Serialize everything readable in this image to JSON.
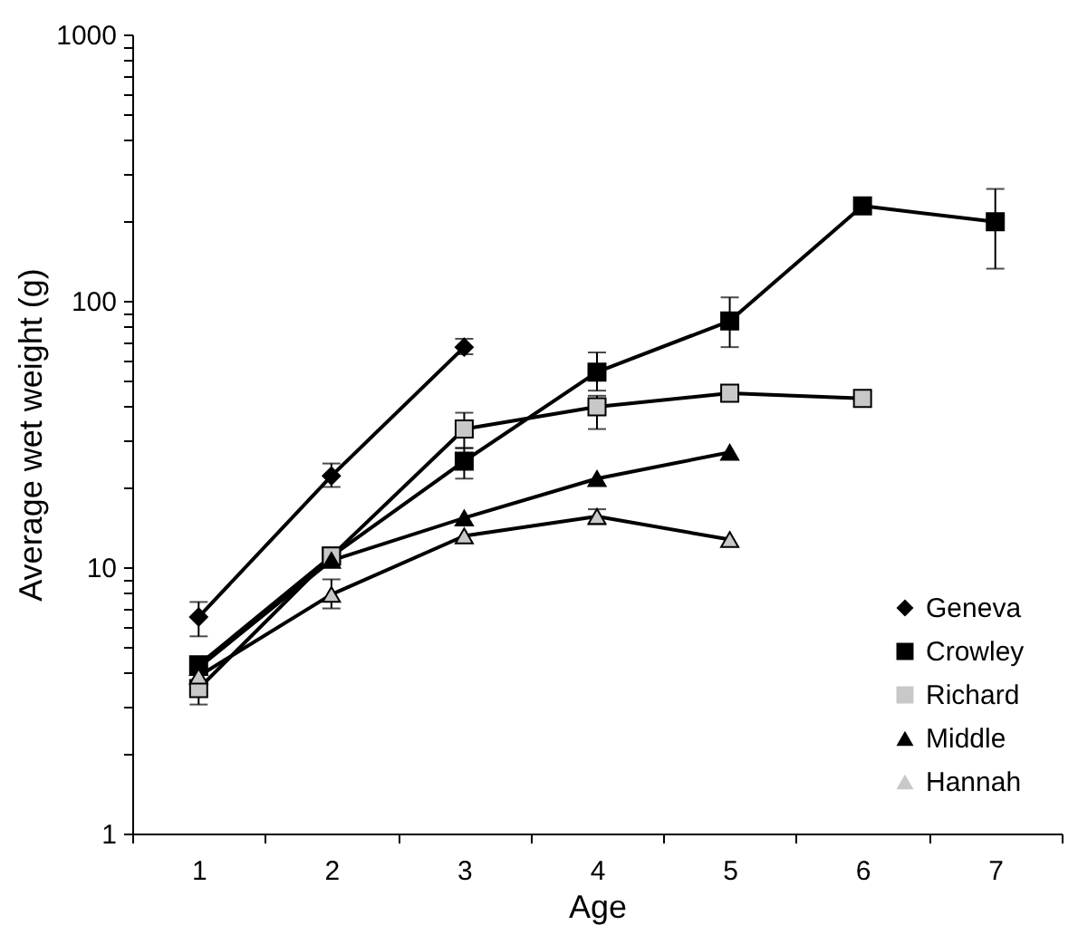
{
  "chart_data": {
    "type": "line",
    "xlabel": "Age",
    "ylabel": "Average wet weight (g)",
    "categories": [
      "1",
      "2",
      "3",
      "4",
      "5",
      "6",
      "7"
    ],
    "log": "y",
    "ylim": [
      1,
      1000
    ],
    "yticks": [
      1,
      {
        "value": 2,
        "label": null
      },
      {
        "value": 3,
        "label": null
      },
      {
        "value": 4,
        "label": null
      },
      {
        "value": 5,
        "label": null
      },
      {
        "value": 6,
        "label": null
      },
      {
        "value": 7,
        "label": null
      },
      {
        "value": 8,
        "label": null
      },
      {
        "value": 9,
        "label": null
      },
      10,
      {
        "value": 20,
        "label": null
      },
      {
        "value": 30,
        "label": null
      },
      {
        "value": 40,
        "label": null
      },
      {
        "value": 50,
        "label": null
      },
      {
        "value": 60,
        "label": null
      },
      {
        "value": 70,
        "label": null
      },
      {
        "value": 80,
        "label": null
      },
      {
        "value": 90,
        "label": null
      },
      100,
      {
        "value": 200,
        "label": null
      },
      {
        "value": 300,
        "label": null
      },
      {
        "value": 400,
        "label": null
      },
      {
        "value": 500,
        "label": null
      },
      {
        "value": 600,
        "label": null
      },
      {
        "value": 700,
        "label": null
      },
      {
        "value": 800,
        "label": null
      },
      {
        "value": 900,
        "label": null
      },
      1000
    ],
    "grid": false,
    "legend": "bottom right",
    "line_style": "solid",
    "series": [
      {
        "name": "Geneva",
        "color": "#000000",
        "marker": "diamond",
        "values": [
          6.5,
          22,
          67,
          null,
          null,
          null,
          null
        ],
        "errors": [
          [
            5.5,
            7.4
          ],
          [
            20,
            24.5
          ],
          [
            63,
            72
          ],
          null,
          null,
          null,
          null
        ]
      },
      {
        "name": "Crowley",
        "color": "#000000",
        "marker": "square",
        "values": [
          4.3,
          11,
          25,
          54,
          84,
          227,
          198
        ],
        "errors": [
          null,
          null,
          [
            21.5,
            28
          ],
          [
            46,
            64
          ],
          [
            67,
            103
          ],
          null,
          [
            132,
            263
          ]
        ]
      },
      {
        "name": "Richard",
        "color": "#c8c8c8",
        "marker": "square",
        "values": [
          3.5,
          11,
          33,
          40,
          45,
          43,
          null
        ],
        "errors": [
          [
            3.05,
            4
          ],
          null,
          [
            28,
            38
          ],
          [
            33,
            44
          ],
          null,
          null,
          null
        ]
      },
      {
        "name": "Middle",
        "color": "#000000",
        "marker": "triangle",
        "values": [
          4.2,
          10.6,
          15.3,
          21.5,
          27,
          null,
          null
        ],
        "errors": [
          null,
          null,
          null,
          null,
          null,
          null,
          null
        ]
      },
      {
        "name": "Hannah",
        "color": "#c8c8c8",
        "marker": "triangle",
        "values": [
          3.9,
          7.9,
          13.1,
          15.5,
          12.7,
          null,
          null
        ],
        "errors": [
          null,
          [
            7,
            9
          ],
          null,
          [
            14.5,
            16.5
          ],
          null,
          null,
          null
        ]
      }
    ]
  }
}
